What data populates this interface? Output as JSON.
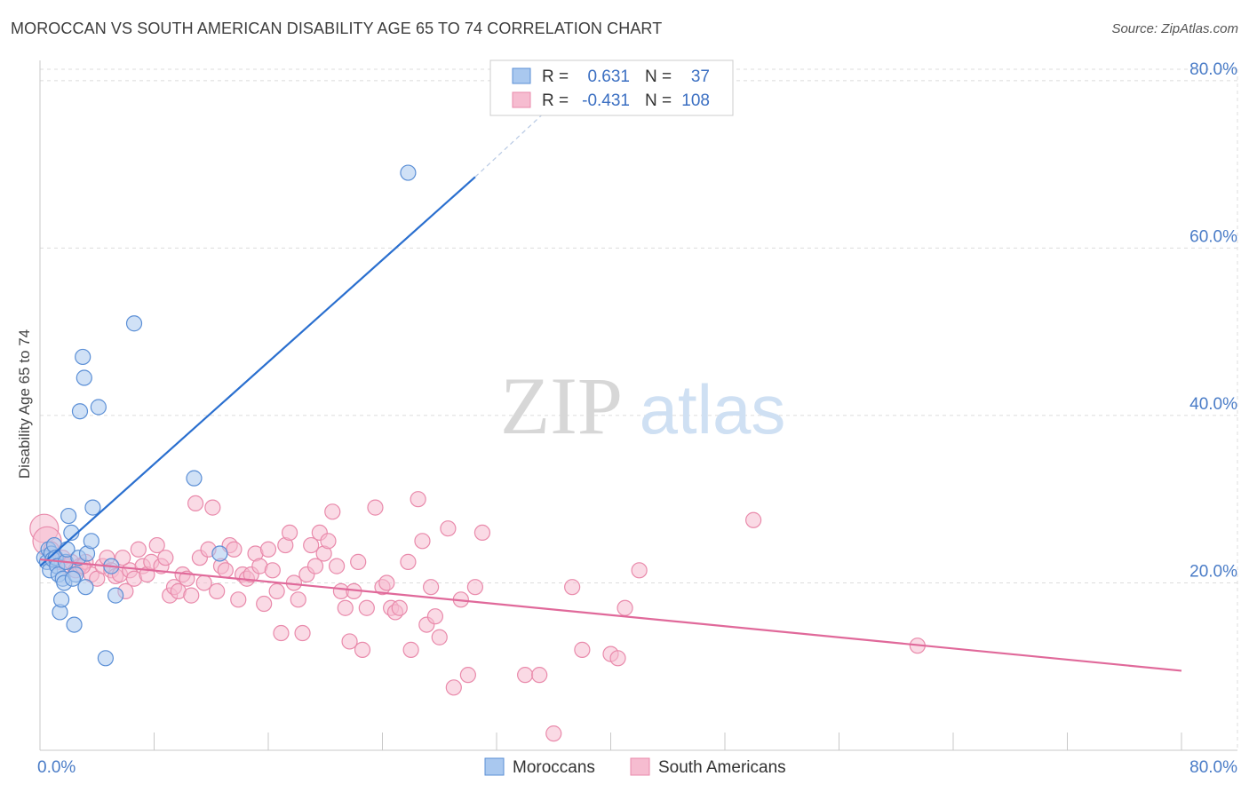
{
  "header": {
    "title": "MOROCCAN VS SOUTH AMERICAN DISABILITY AGE 65 TO 74 CORRELATION CHART",
    "source": "Source: ZipAtlas.com"
  },
  "watermark": {
    "zip": "ZIP",
    "atlas": "atlas"
  },
  "legend": {
    "rows": [
      {
        "r_label": "R =",
        "r_value": "0.631",
        "n_label": "N =",
        "n_value": "37"
      },
      {
        "r_label": "R =",
        "r_value": "-0.431",
        "n_label": "N =",
        "n_value": "108"
      }
    ]
  },
  "bottom_legend": [
    "Moroccans",
    "South Americans"
  ],
  "colors": {
    "moroccan_fill": "#a9c8ef",
    "moroccan_stroke": "#5b8fd6",
    "moroccan_line": "#2a6fcf",
    "south_american_fill": "#f6bcd0",
    "south_american_stroke": "#e98aab",
    "south_american_line": "#e0699a",
    "grid": "#dcdcdc",
    "tick_label": "#4a7cc7"
  },
  "chart_data": {
    "type": "scatter",
    "title": "MOROCCAN VS SOUTH AMERICAN DISABILITY AGE 65 TO 74 CORRELATION CHART",
    "xlabel": "",
    "ylabel": "Disability Age 65 to 74",
    "xlim": [
      0,
      80
    ],
    "ylim": [
      0,
      82
    ],
    "x_tick_labels": [
      "0.0%",
      "80.0%"
    ],
    "y_ticks": [
      20,
      40,
      60,
      80
    ],
    "y_tick_labels": [
      "20.0%",
      "40.0%",
      "60.0%",
      "80.0%"
    ],
    "grid": true,
    "legend_position": "top-center",
    "series": [
      {
        "name": "Moroccans",
        "R": 0.631,
        "N": 37,
        "trend": {
          "x": [
            0,
            30.5
          ],
          "y": [
            22.0,
            68.5
          ],
          "dashed_to": [
            36.5,
            78.0
          ]
        },
        "points": [
          [
            0.3,
            23.0
          ],
          [
            0.5,
            22.5
          ],
          [
            0.6,
            24.0
          ],
          [
            0.7,
            21.5
          ],
          [
            0.8,
            23.5
          ],
          [
            0.9,
            22.8
          ],
          [
            1.0,
            24.5
          ],
          [
            1.1,
            23.0
          ],
          [
            1.2,
            22.0
          ],
          [
            1.3,
            21.0
          ],
          [
            1.4,
            16.5
          ],
          [
            1.5,
            18.0
          ],
          [
            1.6,
            20.5
          ],
          [
            1.7,
            20.0
          ],
          [
            1.8,
            22.5
          ],
          [
            1.9,
            24.0
          ],
          [
            2.0,
            28.0
          ],
          [
            2.2,
            26.0
          ],
          [
            2.4,
            15.0
          ],
          [
            2.5,
            21.0
          ],
          [
            2.7,
            23.0
          ],
          [
            2.8,
            40.5
          ],
          [
            3.1,
            44.5
          ],
          [
            3.2,
            19.5
          ],
          [
            3.3,
            23.5
          ],
          [
            3.6,
            25.0
          ],
          [
            3.7,
            29.0
          ],
          [
            4.1,
            41.0
          ],
          [
            4.6,
            11.0
          ],
          [
            5.0,
            22.0
          ],
          [
            5.3,
            18.5
          ],
          [
            6.6,
            51.0
          ],
          [
            10.8,
            32.5
          ],
          [
            12.6,
            23.5
          ],
          [
            25.8,
            69.0
          ],
          [
            3.0,
            47.0
          ],
          [
            2.3,
            20.5
          ]
        ]
      },
      {
        "name": "South Americans",
        "R": -0.431,
        "N": 108,
        "trend": {
          "x": [
            0,
            80
          ],
          "y": [
            22.8,
            9.5
          ]
        },
        "points": [
          [
            0.3,
            26.5
          ],
          [
            0.5,
            25.0
          ],
          [
            0.8,
            24.0
          ],
          [
            1.0,
            23.0
          ],
          [
            1.3,
            22.5
          ],
          [
            1.6,
            23.0
          ],
          [
            1.9,
            22.0
          ],
          [
            2.2,
            22.5
          ],
          [
            2.5,
            21.5
          ],
          [
            2.8,
            22.0
          ],
          [
            3.2,
            22.5
          ],
          [
            3.6,
            21.0
          ],
          [
            4.0,
            20.5
          ],
          [
            4.4,
            22.0
          ],
          [
            4.7,
            23.0
          ],
          [
            5.0,
            21.5
          ],
          [
            5.3,
            20.8
          ],
          [
            5.6,
            21.0
          ],
          [
            6.0,
            19.0
          ],
          [
            6.3,
            21.5
          ],
          [
            6.6,
            20.5
          ],
          [
            6.9,
            24.0
          ],
          [
            7.2,
            22.0
          ],
          [
            7.5,
            21.0
          ],
          [
            7.8,
            22.5
          ],
          [
            8.2,
            24.5
          ],
          [
            8.5,
            22.0
          ],
          [
            8.8,
            23.0
          ],
          [
            9.1,
            18.5
          ],
          [
            9.4,
            19.5
          ],
          [
            9.7,
            19.0
          ],
          [
            10.0,
            21.0
          ],
          [
            10.3,
            20.5
          ],
          [
            10.6,
            18.5
          ],
          [
            10.9,
            29.5
          ],
          [
            11.2,
            23.0
          ],
          [
            11.5,
            20.0
          ],
          [
            11.8,
            24.0
          ],
          [
            12.1,
            29.0
          ],
          [
            12.4,
            19.0
          ],
          [
            12.7,
            22.0
          ],
          [
            13.0,
            21.5
          ],
          [
            13.3,
            24.5
          ],
          [
            13.6,
            24.0
          ],
          [
            13.9,
            18.0
          ],
          [
            14.2,
            21.0
          ],
          [
            14.5,
            20.5
          ],
          [
            14.8,
            21.0
          ],
          [
            15.1,
            23.5
          ],
          [
            15.4,
            22.0
          ],
          [
            15.7,
            17.5
          ],
          [
            16.0,
            24.0
          ],
          [
            16.3,
            21.5
          ],
          [
            16.6,
            19.0
          ],
          [
            16.9,
            14.0
          ],
          [
            17.2,
            24.5
          ],
          [
            17.5,
            26.0
          ],
          [
            17.8,
            20.0
          ],
          [
            18.1,
            18.0
          ],
          [
            18.4,
            14.0
          ],
          [
            18.7,
            21.0
          ],
          [
            19.0,
            24.5
          ],
          [
            19.3,
            22.0
          ],
          [
            19.6,
            26.0
          ],
          [
            19.9,
            23.5
          ],
          [
            20.2,
            25.0
          ],
          [
            20.5,
            28.5
          ],
          [
            20.8,
            22.0
          ],
          [
            21.1,
            19.0
          ],
          [
            21.4,
            17.0
          ],
          [
            21.7,
            13.0
          ],
          [
            22.0,
            19.0
          ],
          [
            22.3,
            22.5
          ],
          [
            22.6,
            12.0
          ],
          [
            22.9,
            17.0
          ],
          [
            23.5,
            29.0
          ],
          [
            24.0,
            19.5
          ],
          [
            24.3,
            20.0
          ],
          [
            24.6,
            17.0
          ],
          [
            24.9,
            16.5
          ],
          [
            25.2,
            17.0
          ],
          [
            25.8,
            22.5
          ],
          [
            26.0,
            12.0
          ],
          [
            26.5,
            30.0
          ],
          [
            26.8,
            25.0
          ],
          [
            27.1,
            15.0
          ],
          [
            27.4,
            19.5
          ],
          [
            27.7,
            16.0
          ],
          [
            28.0,
            13.5
          ],
          [
            28.6,
            26.5
          ],
          [
            29.0,
            7.5
          ],
          [
            29.5,
            18.0
          ],
          [
            30.0,
            9.0
          ],
          [
            30.5,
            19.5
          ],
          [
            31.0,
            26.0
          ],
          [
            34.0,
            9.0
          ],
          [
            35.0,
            9.0
          ],
          [
            36.0,
            2.0
          ],
          [
            37.3,
            19.5
          ],
          [
            38.0,
            12.0
          ],
          [
            40.0,
            11.5
          ],
          [
            40.5,
            11.0
          ],
          [
            41.0,
            17.0
          ],
          [
            42.0,
            21.5
          ],
          [
            50.0,
            27.5
          ],
          [
            61.5,
            12.5
          ],
          [
            3.0,
            22.0
          ],
          [
            5.8,
            23.0
          ]
        ]
      }
    ]
  }
}
